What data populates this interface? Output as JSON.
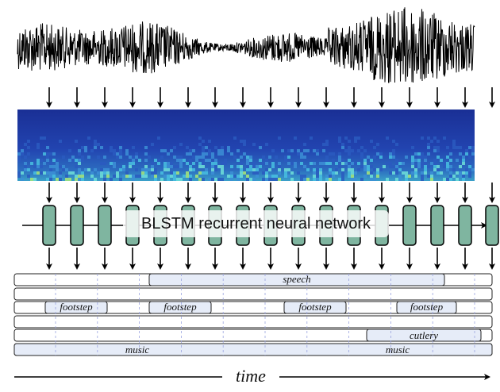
{
  "network_label": "BLSTM recurrent neural network",
  "time_label": "time",
  "events": {
    "speech": "speech",
    "footstep": "footstep",
    "cutlery": "cutlery",
    "music": "music"
  },
  "colors": {
    "waveform": "#000000",
    "spectrogram_bg": "#1f3aa8",
    "lstm_cell": "#7fb5a0",
    "event_fill": "#e6ecf8",
    "track_border": "#222222",
    "frame_grid": "#9aa3e0"
  },
  "frame_count": 17
}
